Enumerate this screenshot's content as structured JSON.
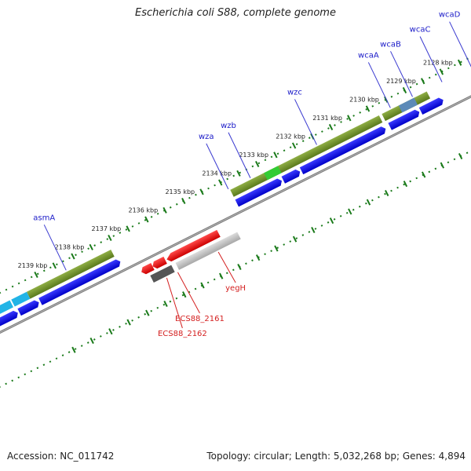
{
  "title": "Escherichia coli S88, complete genome",
  "footer": {
    "accession": "Accession: NC_011742",
    "summary": "Topology: circular; Length: 5,032,268 bp; Genes: 4,894"
  },
  "ticks": [
    {
      "label": "2128 kbp",
      "pos": 2128
    },
    {
      "label": "2129 kbp",
      "pos": 2129
    },
    {
      "label": "2130 kbp",
      "pos": 2130
    },
    {
      "label": "2131 kbp",
      "pos": 2131
    },
    {
      "label": "2132 kbp",
      "pos": 2132
    },
    {
      "label": "2133 kbp",
      "pos": 2133
    },
    {
      "label": "2134 kbp",
      "pos": 2134
    },
    {
      "label": "2135 kbp",
      "pos": 2135
    },
    {
      "label": "2136 kbp",
      "pos": 2136
    },
    {
      "label": "2137 kbp",
      "pos": 2137
    },
    {
      "label": "2138 kbp",
      "pos": 2138
    },
    {
      "label": "2139 kbp",
      "pos": 2139
    }
  ],
  "genes_top": [
    {
      "name": "wcaD",
      "pos": 2127.3
    },
    {
      "name": "wcaC",
      "pos": 2128.1
    },
    {
      "name": "wcaB",
      "pos": 2128.9
    },
    {
      "name": "wcaA",
      "pos": 2129.5
    },
    {
      "name": "wzc",
      "pos": 2131.5
    },
    {
      "name": "wzb",
      "pos": 2133.3
    },
    {
      "name": "wza",
      "pos": 2133.9
    },
    {
      "name": "asmA",
      "pos": 2138.3
    }
  ],
  "genes_bottom": [
    {
      "name": "yegH",
      "pos": 2134.8
    },
    {
      "name": "ECS88_2161",
      "pos": 2135.9
    },
    {
      "name": "ECS88_2162",
      "pos": 2136.2
    }
  ],
  "colors": {
    "olive": "#6b8e23",
    "blue": "#0000ee",
    "cyan": "#22b4e6",
    "green": "#33cc33",
    "steel": "#4682b4",
    "red": "#ee0000",
    "gray": "#555555",
    "silver": "#bcbcbc",
    "tick_green": "#1a7a1a"
  }
}
